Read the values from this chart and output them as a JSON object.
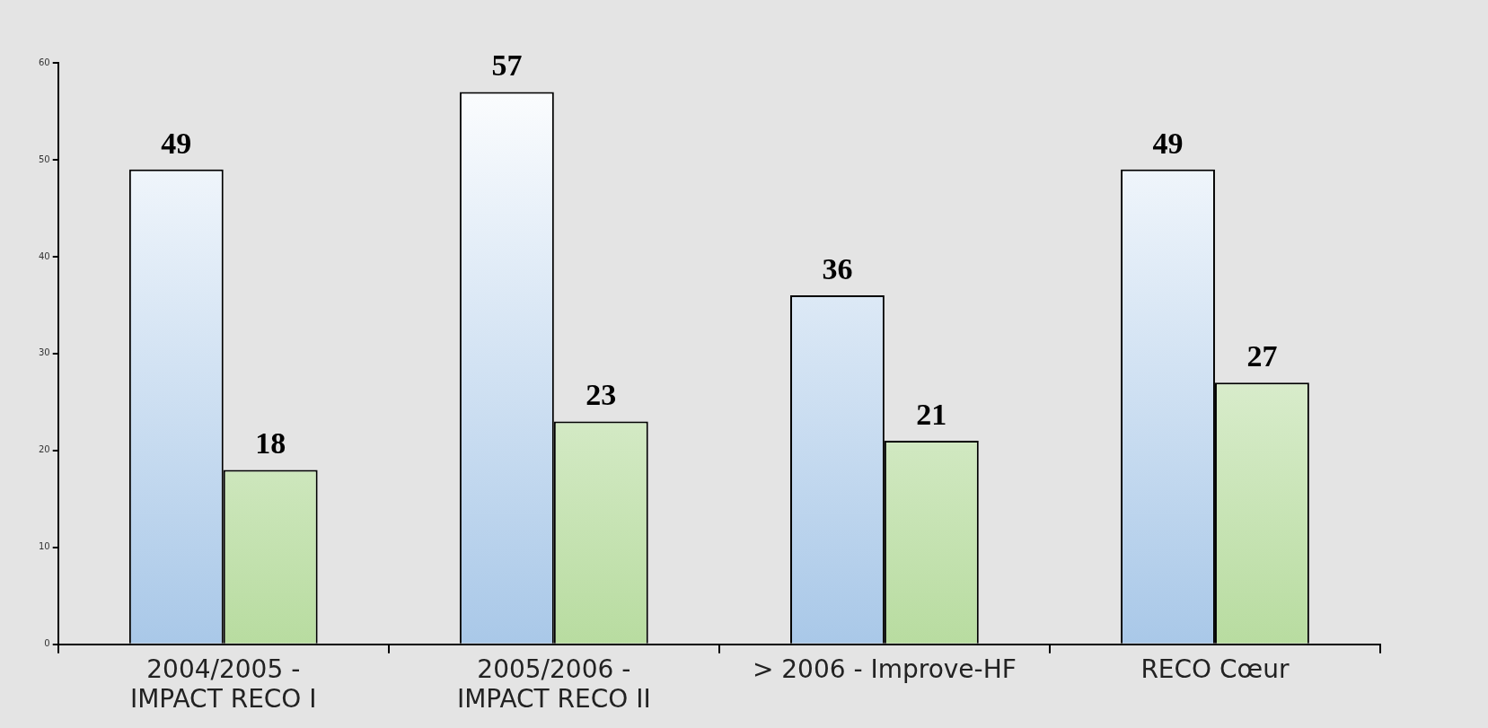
{
  "chart_data": {
    "type": "bar",
    "categories": [
      "2004/2005 - IMPACT RECO I",
      "2005/2006 - IMPACT RECO II",
      "> 2006 - Improve-HF",
      "RECO Cœur"
    ],
    "series": [
      {
        "color": "#a9c8e8",
        "values": [
          49,
          57,
          36,
          49
        ]
      },
      {
        "color": "#b8dca0",
        "values": [
          18,
          23,
          21,
          27
        ]
      }
    ],
    "ylim": [
      0,
      60
    ],
    "yticks": [
      0,
      10,
      20,
      30,
      40,
      50,
      60
    ],
    "grid": false,
    "data_labels": true,
    "legend": false
  }
}
